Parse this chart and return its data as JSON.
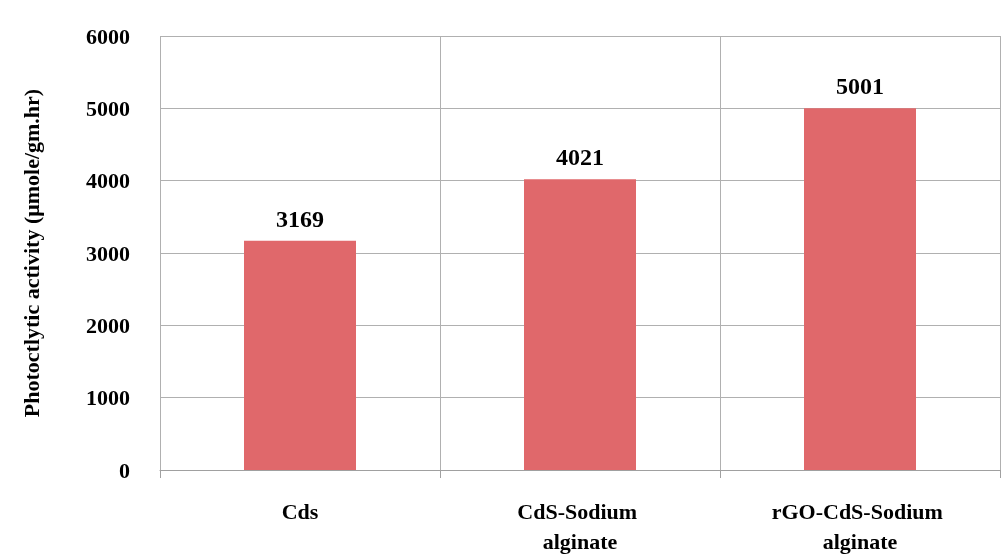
{
  "chart_data": {
    "type": "bar",
    "ylabel": "Photoctlytic activity (μmole/gm.hr)",
    "categories": [
      "Cds",
      "CdS-Sodium alginate",
      "rGO-CdS-Sodium alginate"
    ],
    "values": [
      3169,
      4021,
      5001
    ],
    "color": "#e0686b",
    "ylim": [
      0,
      6000
    ],
    "yticks": [
      0,
      1000,
      2000,
      3000,
      4000,
      5000,
      6000
    ],
    "grid": true,
    "data_labels": true
  }
}
